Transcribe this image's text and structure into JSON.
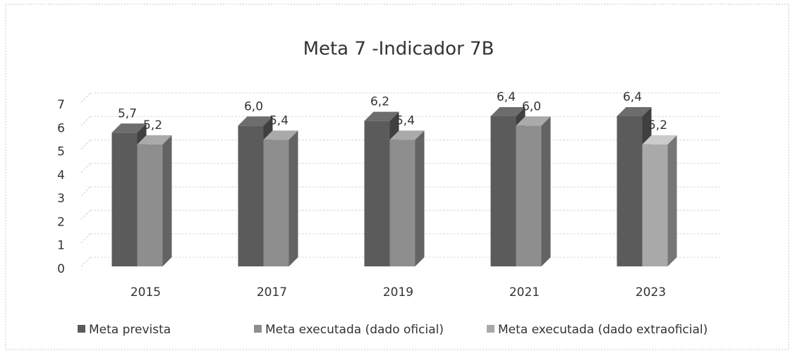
{
  "chart_data": {
    "type": "bar3d",
    "title": "Meta 7  -Indicador 7B",
    "categories": [
      "2015",
      "2017",
      "2019",
      "2021",
      "2023"
    ],
    "series": [
      {
        "name": "Meta prevista",
        "color": "#5b5b5b",
        "values": [
          5.7,
          6.0,
          6.2,
          6.4,
          6.4
        ],
        "value_labels": [
          "5,7",
          "6,0",
          "6,2",
          "6,4",
          "6,4"
        ]
      },
      {
        "name": "Meta executada (dado oficial)",
        "color": "#8e8e8e",
        "values": [
          5.2,
          5.4,
          5.4,
          6.0,
          null
        ],
        "value_labels": [
          "5,2",
          "5,4",
          "5,4",
          "6,0",
          null
        ]
      },
      {
        "name": "Meta executada (dado extraoficial)",
        "color": "#a9a9a9",
        "values": [
          null,
          null,
          null,
          null,
          5.2
        ],
        "value_labels": [
          null,
          null,
          null,
          null,
          "5,2"
        ]
      }
    ],
    "ylim": [
      0,
      7
    ],
    "yticks": [
      0,
      1,
      2,
      3,
      4,
      5,
      6,
      7
    ],
    "grid": true,
    "legend": "bottom"
  }
}
